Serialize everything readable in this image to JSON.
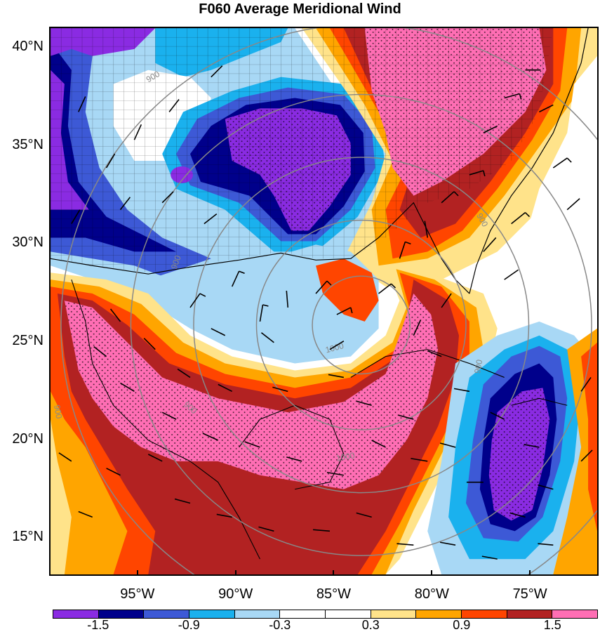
{
  "title": "F060 Average Meridional Wind",
  "latitude_labels": [
    {
      "text": "40°N",
      "value": 40
    },
    {
      "text": "35°N",
      "value": 35
    },
    {
      "text": "30°N",
      "value": 30
    },
    {
      "text": "25°N",
      "value": 25
    },
    {
      "text": "20°N",
      "value": 20
    },
    {
      "text": "15°N",
      "value": 15
    }
  ],
  "longitude_labels": [
    {
      "text": "95°W",
      "value": -95
    },
    {
      "text": "90°W",
      "value": -90
    },
    {
      "text": "85°W",
      "value": -85
    },
    {
      "text": "80°W",
      "value": -80
    },
    {
      "text": "75°W",
      "value": -75
    }
  ],
  "map_extent": {
    "lon_min": -99.5,
    "lon_max": -71.5,
    "lat_min": 13.0,
    "lat_max": 41.0
  },
  "color_scale": {
    "colors": [
      "#8a2be2",
      "#00008b",
      "#3d59d6",
      "#1ab1ee",
      "#a8d8f5",
      "#ffffff",
      "#ffffff",
      "#ffe38a",
      "#ffa500",
      "#ff4500",
      "#b22222",
      "#ff6eb4"
    ],
    "labels": [
      {
        "text": "-1.5",
        "boundary": 1
      },
      {
        "text": "-0.9",
        "boundary": 3
      },
      {
        "text": "-0.3",
        "boundary": 5
      },
      {
        "text": "0.3",
        "boundary": 7
      },
      {
        "text": "0.9",
        "boundary": 9
      },
      {
        "text": "1.5",
        "boundary": 11
      }
    ]
  },
  "contour_labels": [
    "900",
    "900",
    "900",
    "900",
    "1000",
    "900",
    "900",
    "1000"
  ]
}
